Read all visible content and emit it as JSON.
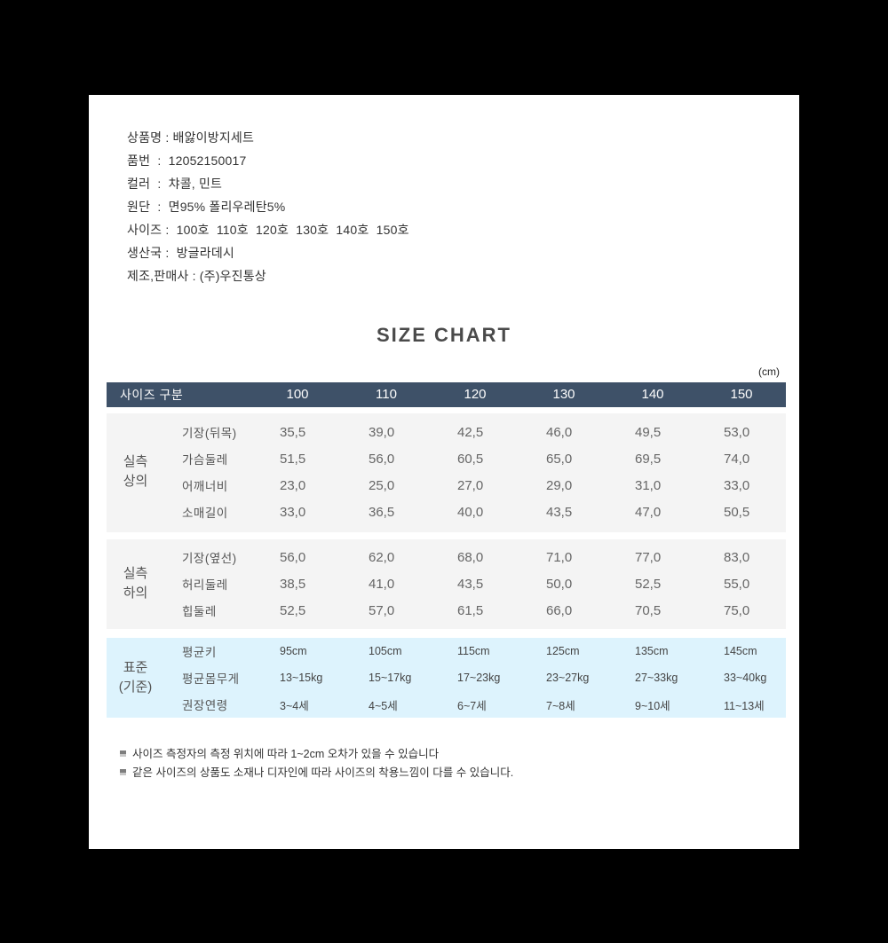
{
  "product_info": {
    "lines": [
      "상품명 : 배앓이방지세트",
      "품번  :  12052150017",
      "컬러  :  챠콜, 민트",
      "원단  :  면95% 폴리우레탄5%",
      "사이즈 :  100호  110호  120호  130호  140호  150호",
      "생산국 :  방글라데시",
      "제조,판매사 : (주)우진통상"
    ]
  },
  "size_chart": {
    "title": "SIZE CHART",
    "unit": "(cm)",
    "colors": {
      "header_bg": "#3e5168",
      "measured_section_bg": "#f4f4f4",
      "standard_section_bg": "#ddf3fd"
    },
    "header": {
      "label": "사이즈 구분",
      "sizes": [
        "100",
        "110",
        "120",
        "130",
        "140",
        "150"
      ]
    },
    "sections": [
      {
        "group": [
          "실측",
          "상의"
        ],
        "bg": "#f4f4f4",
        "rows": [
          {
            "name": "기장(뒤목)",
            "values": [
              "35,5",
              "39,0",
              "42,5",
              "46,0",
              "49,5",
              "53,0"
            ]
          },
          {
            "name": "가슴둘레",
            "values": [
              "51,5",
              "56,0",
              "60,5",
              "65,0",
              "69,5",
              "74,0"
            ]
          },
          {
            "name": "어깨너비",
            "values": [
              "23,0",
              "25,0",
              "27,0",
              "29,0",
              "31,0",
              "33,0"
            ]
          },
          {
            "name": "소매길이",
            "values": [
              "33,0",
              "36,5",
              "40,0",
              "43,5",
              "47,0",
              "50,5"
            ]
          }
        ]
      },
      {
        "group": [
          "실측",
          "하의"
        ],
        "bg": "#f4f4f4",
        "rows": [
          {
            "name": "기장(옆선)",
            "values": [
              "56,0",
              "62,0",
              "68,0",
              "71,0",
              "77,0",
              "83,0"
            ]
          },
          {
            "name": "허리둘레",
            "values": [
              "38,5",
              "41,0",
              "43,5",
              "50,0",
              "52,5",
              "55,0"
            ]
          },
          {
            "name": "힙둘레",
            "values": [
              "52,5",
              "57,0",
              "61,5",
              "66,0",
              "70,5",
              "75,0"
            ]
          }
        ]
      },
      {
        "group": [
          "표준",
          "(기준)"
        ],
        "bg": "#ddf3fd",
        "rows": [
          {
            "name": "평균키",
            "values": [
              "95cm",
              "105cm",
              "115cm",
              "125cm",
              "135cm",
              "145cm"
            ]
          },
          {
            "name": "평균몸무게",
            "values": [
              "13~15kg",
              "15~17kg",
              "17~23kg",
              "23~27kg",
              "27~33kg",
              "33~40kg"
            ]
          },
          {
            "name": "권장연령",
            "values": [
              "3~4세",
              "4~5세",
              "6~7세",
              "7~8세",
              "9~10세",
              "11~13세"
            ]
          }
        ]
      }
    ]
  },
  "notes": [
    "사이즈 측정자의 측정 위치에 따라 1~2cm 오차가 있을 수 있습니다",
    "같은 사이즈의 상품도 소재나 디자인에 따라 사이즈의 착용느낌이 다를 수 있습니다."
  ]
}
